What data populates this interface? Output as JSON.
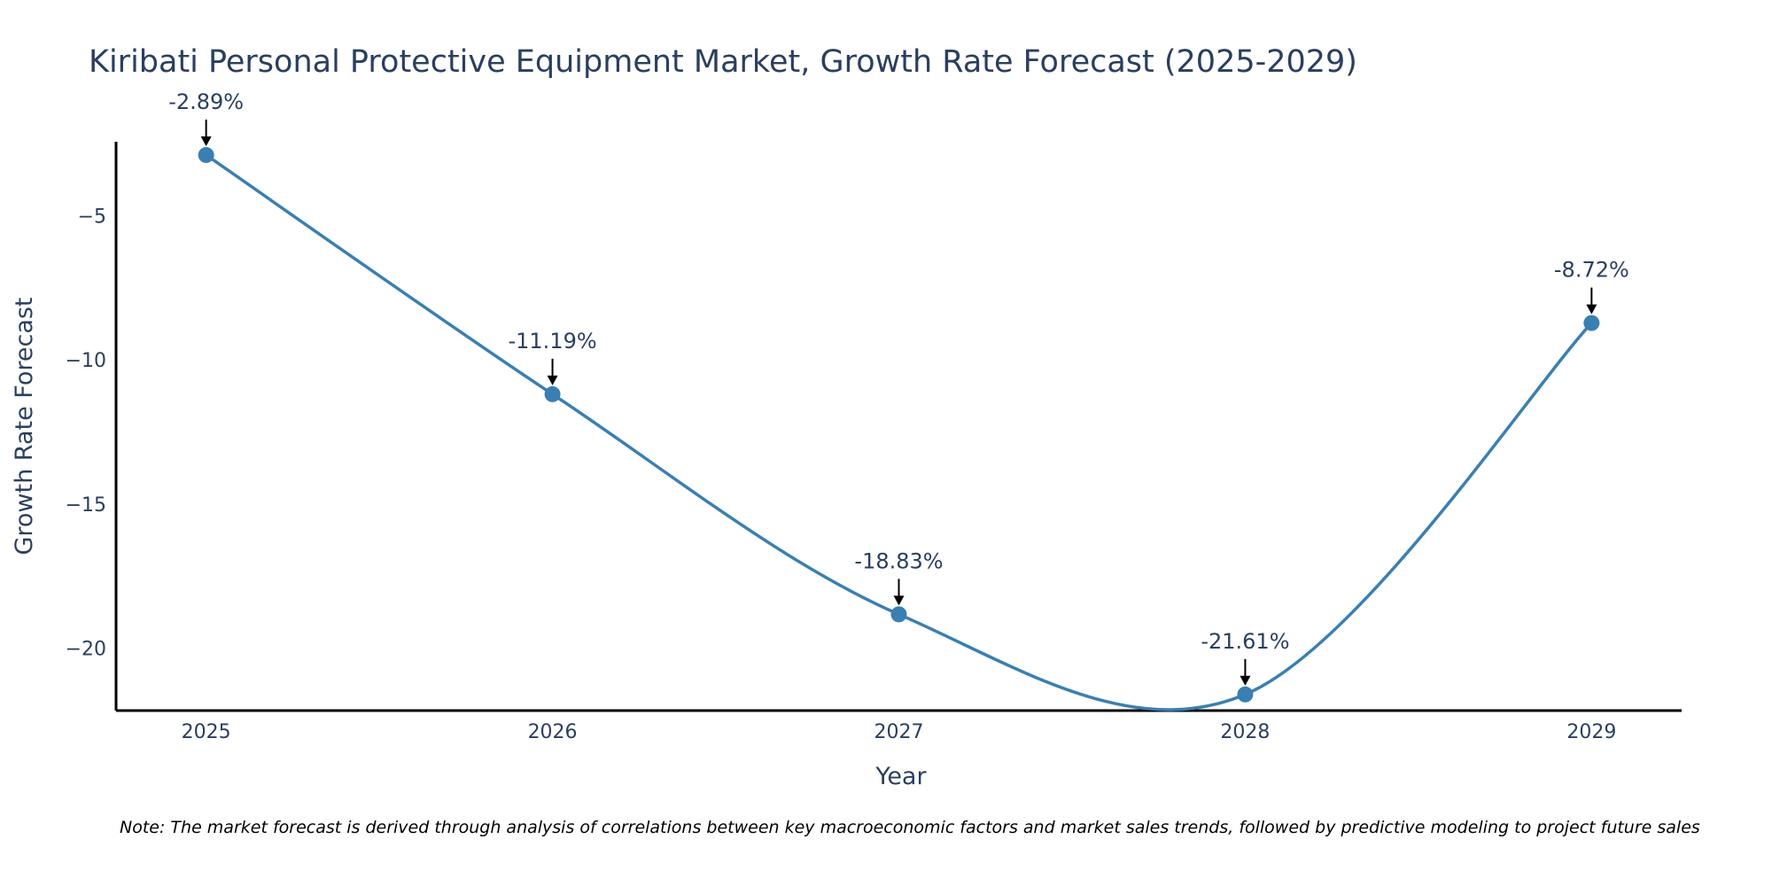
{
  "chart_data": {
    "type": "line",
    "title": "Kiribati Personal Protective Equipment Market, Growth Rate Forecast (2025-2029)",
    "xlabel": "Year",
    "ylabel": "Growth Rate Forecast",
    "x": [
      "2025",
      "2026",
      "2027",
      "2028",
      "2029"
    ],
    "series": [
      {
        "name": "Growth Rate Forecast",
        "values": [
          -2.89,
          -11.19,
          -18.83,
          -21.61,
          -8.72
        ],
        "labels": [
          "-2.89%",
          "-11.19%",
          "-18.83%",
          "-21.61%",
          "-8.72%"
        ]
      }
    ],
    "yticks": [
      -5,
      -10,
      -15,
      -20
    ],
    "ytick_labels": [
      "−5",
      "−10",
      "−15",
      "−20"
    ],
    "xlim": [
      2024.74,
      2029.26
    ],
    "ylim": [
      -22.17,
      -2.43
    ],
    "grid": false,
    "line_color": "#3a7fb1",
    "marker_color": "#3a7fb1",
    "line_shape": "spline",
    "note": "Note: The market forecast is derived through analysis of correlations between key macroeconomic factors and market sales trends, followed by predictive modeling to project future sales"
  }
}
